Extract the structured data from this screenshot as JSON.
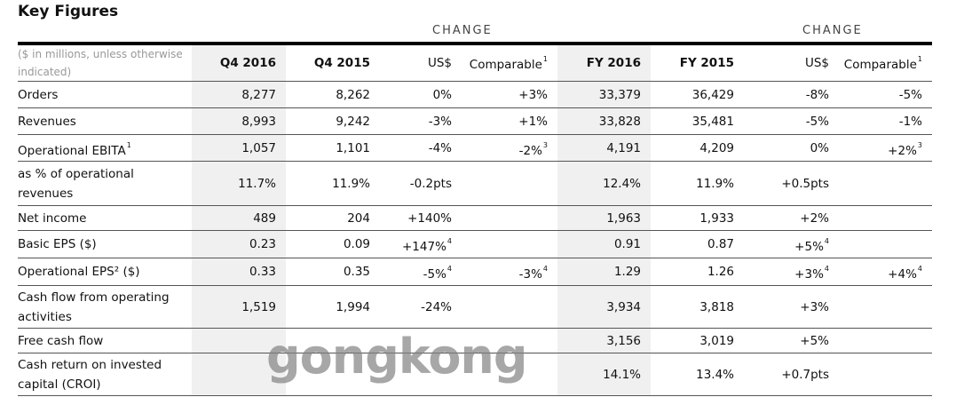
{
  "title": "Key Figures",
  "change_label": "CHANGE",
  "header": {
    "unit_note": "($ in millions, unless otherwise indicated)",
    "columns": [
      {
        "v": "Q4 2016",
        "sup": ""
      },
      {
        "v": "Q4 2015",
        "sup": ""
      },
      {
        "v": "US$",
        "sup": ""
      },
      {
        "v": "Comparable",
        "sup": "1"
      },
      {
        "v": "FY 2016",
        "sup": ""
      },
      {
        "v": "FY 2015",
        "sup": ""
      },
      {
        "v": "US$",
        "sup": ""
      },
      {
        "v": "Comparable",
        "sup": "1"
      }
    ]
  },
  "rows": [
    {
      "label": "Orders",
      "sup": "",
      "h": 30,
      "cells": [
        {
          "v": "8,277"
        },
        {
          "v": "8,262"
        },
        {
          "v": "0%"
        },
        {
          "v": "+3%"
        },
        {
          "v": "33,379"
        },
        {
          "v": "36,429"
        },
        {
          "v": "-8%"
        },
        {
          "v": "-5%"
        }
      ]
    },
    {
      "label": "Revenues",
      "sup": "",
      "h": 30,
      "cells": [
        {
          "v": "8,993"
        },
        {
          "v": "9,242"
        },
        {
          "v": "-3%"
        },
        {
          "v": "+1%"
        },
        {
          "v": "33,828"
        },
        {
          "v": "35,481"
        },
        {
          "v": "-5%"
        },
        {
          "v": "-1%"
        }
      ]
    },
    {
      "label": "Operational EBITA",
      "sup": "1",
      "h": 30,
      "cells": [
        {
          "v": "1,057"
        },
        {
          "v": "1,101"
        },
        {
          "v": "-4%"
        },
        {
          "v": "-2%",
          "sup": "3"
        },
        {
          "v": "4,191"
        },
        {
          "v": "4,209"
        },
        {
          "v": "0%"
        },
        {
          "v": "+2%",
          "sup": "3"
        }
      ]
    },
    {
      "label": "as % of operational revenues",
      "sup": "",
      "h": 50,
      "cells": [
        {
          "v": "11.7%"
        },
        {
          "v": "11.9%"
        },
        {
          "v": "-0.2pts"
        },
        {
          "v": ""
        },
        {
          "v": "12.4%"
        },
        {
          "v": "11.9%"
        },
        {
          "v": "+0.5pts"
        },
        {
          "v": ""
        }
      ]
    },
    {
      "label": "Net income",
      "sup": "",
      "h": 28,
      "cells": [
        {
          "v": "489"
        },
        {
          "v": "204"
        },
        {
          "v": "+140%"
        },
        {
          "v": ""
        },
        {
          "v": "1,963"
        },
        {
          "v": "1,933"
        },
        {
          "v": "+2%"
        },
        {
          "v": ""
        }
      ]
    },
    {
      "label": "Basic EPS ($)",
      "sup": "",
      "h": 31,
      "cells": [
        {
          "v": "0.23"
        },
        {
          "v": "0.09"
        },
        {
          "v": "+147%",
          "sup": "4"
        },
        {
          "v": ""
        },
        {
          "v": "0.91"
        },
        {
          "v": "0.87"
        },
        {
          "v": "+5%",
          "sup": "4"
        },
        {
          "v": ""
        }
      ]
    },
    {
      "label": "Operational EPS² ($)",
      "sup": "",
      "h": 31,
      "cells": [
        {
          "v": "0.33"
        },
        {
          "v": "0.35"
        },
        {
          "v": "-5%",
          "sup": "4"
        },
        {
          "v": "-3%",
          "sup": "4"
        },
        {
          "v": "1.29"
        },
        {
          "v": "1.26"
        },
        {
          "v": "+3%",
          "sup": "4"
        },
        {
          "v": "+4%",
          "sup": "4"
        }
      ]
    },
    {
      "label": "Cash flow from operating activities",
      "sup": "",
      "h": 48,
      "cells": [
        {
          "v": "1,519"
        },
        {
          "v": "1,994"
        },
        {
          "v": "-24%"
        },
        {
          "v": ""
        },
        {
          "v": "3,934"
        },
        {
          "v": "3,818"
        },
        {
          "v": "+3%"
        },
        {
          "v": ""
        }
      ]
    },
    {
      "label": "Free cash flow",
      "sup": "",
      "h": 28,
      "cells": [
        {
          "v": ""
        },
        {
          "v": ""
        },
        {
          "v": ""
        },
        {
          "v": ""
        },
        {
          "v": "3,156"
        },
        {
          "v": "3,019"
        },
        {
          "v": "+5%"
        },
        {
          "v": ""
        }
      ]
    },
    {
      "label": "Cash return on invested capital (CROI)",
      "sup": "",
      "h": 48,
      "cells": [
        {
          "v": ""
        },
        {
          "v": ""
        },
        {
          "v": ""
        },
        {
          "v": ""
        },
        {
          "v": "14.1%"
        },
        {
          "v": "13.4%"
        },
        {
          "v": "+0.7pts"
        },
        {
          "v": ""
        }
      ]
    }
  ],
  "watermark": "gongkong"
}
